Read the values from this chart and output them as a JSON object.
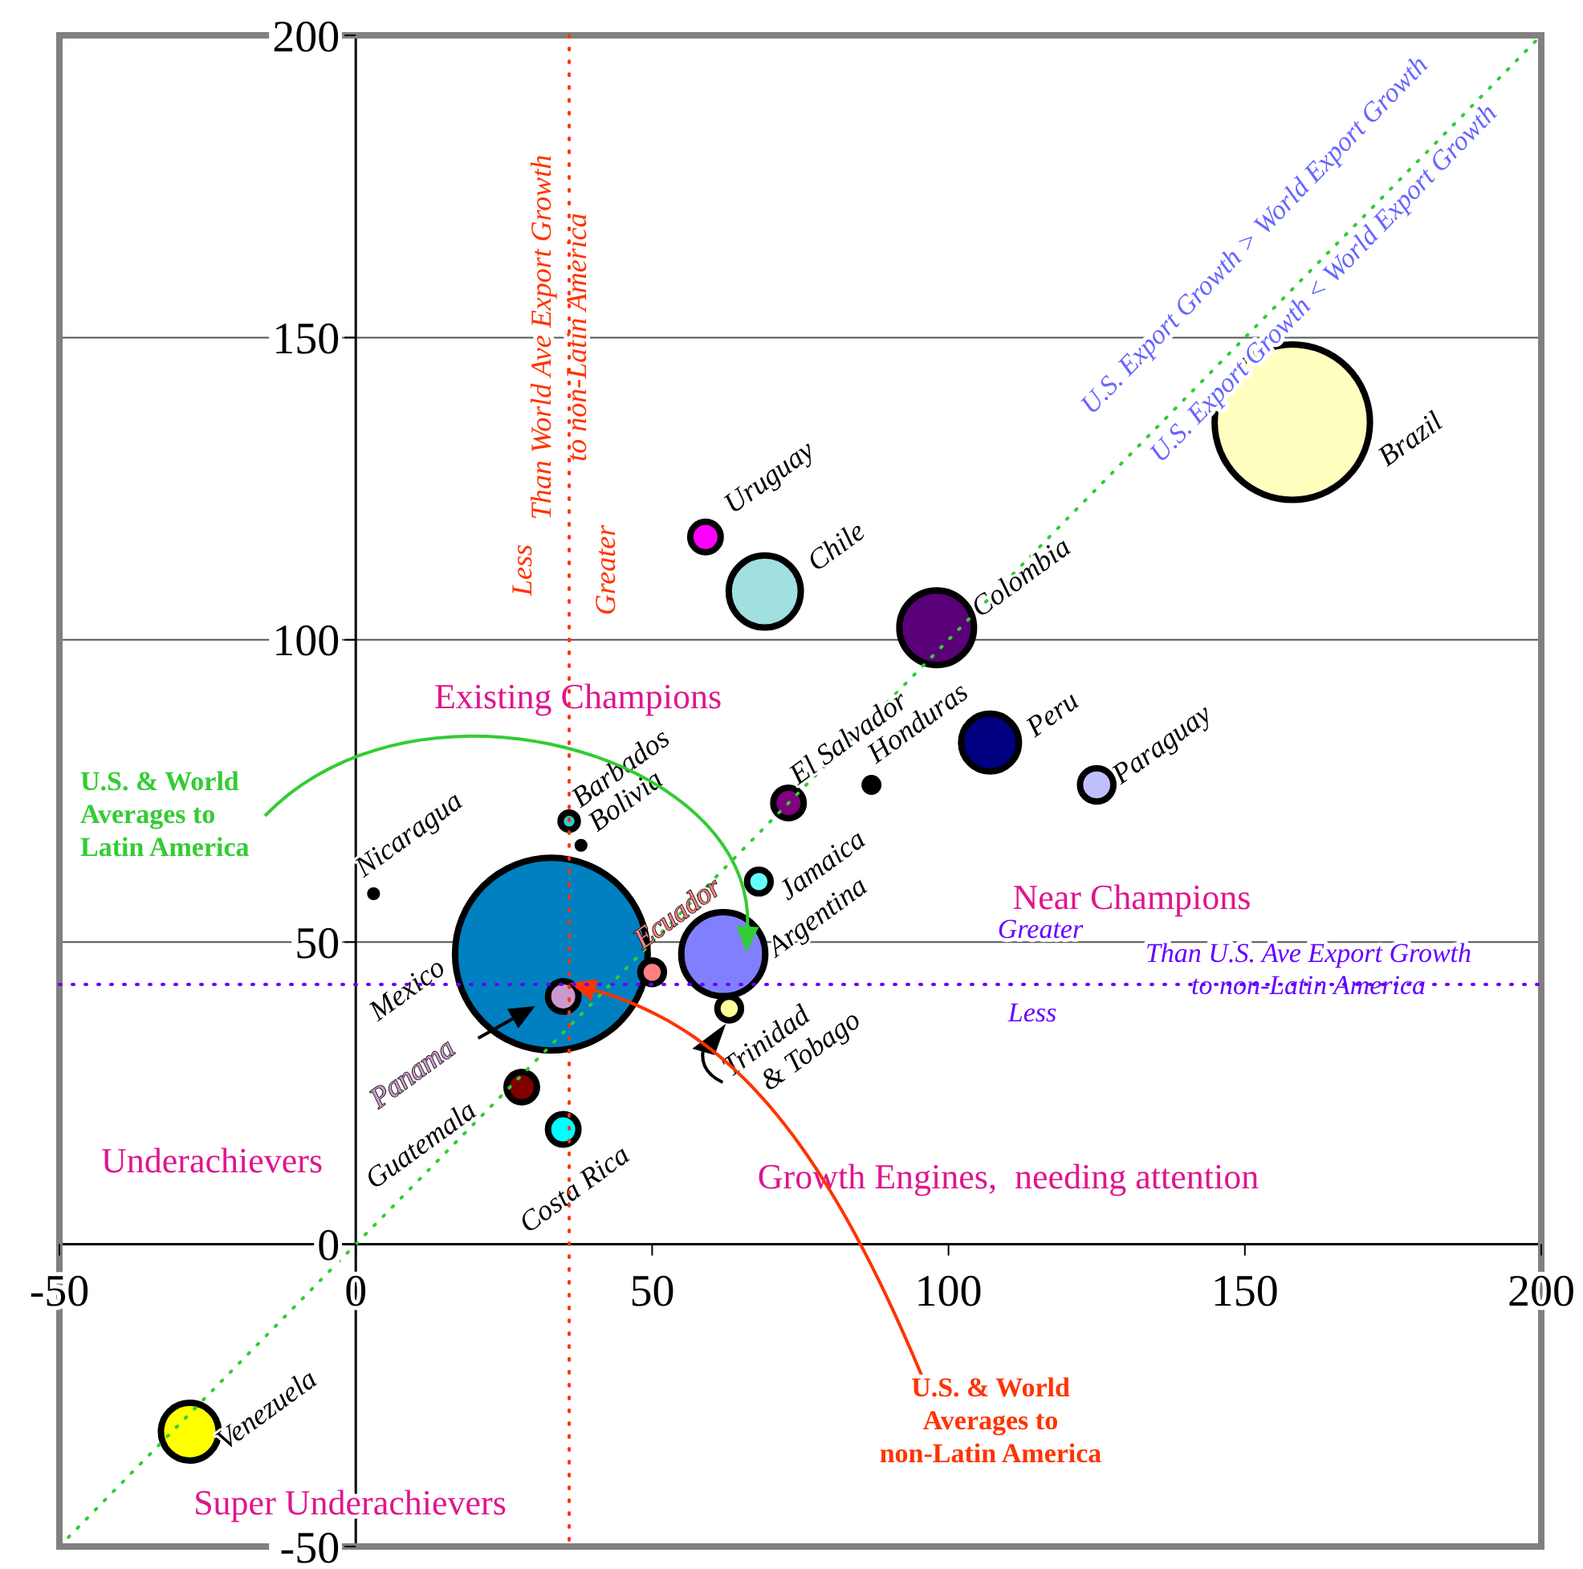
{
  "chart_data": {
    "type": "bubble",
    "xlim": [
      -50,
      200
    ],
    "ylim": [
      -50,
      200
    ],
    "xticks": [
      -50,
      0,
      50,
      100,
      150,
      200
    ],
    "yticks": [
      -50,
      0,
      50,
      100,
      150,
      200
    ],
    "grid": "y",
    "marker": "circle",
    "series": [
      {
        "name": "Mexico",
        "color": "#0080c0",
        "x": [
          33
        ],
        "values": [
          48
        ],
        "sizes": [
          1
        ]
      },
      {
        "name": "Brazil",
        "color": "#ffffc0",
        "x": [
          158
        ],
        "values": [
          136
        ],
        "sizes": [
          0.65
        ]
      },
      {
        "name": "Argentina",
        "color": "#8080ff",
        "x": [
          62
        ],
        "values": [
          48
        ],
        "sizes": [
          0.19
        ]
      },
      {
        "name": "Colombia",
        "color": "#5a0078",
        "x": [
          98
        ],
        "values": [
          102
        ],
        "sizes": [
          0.15
        ]
      },
      {
        "name": "Chile",
        "color": "#a0e0e0",
        "x": [
          69
        ],
        "values": [
          108
        ],
        "sizes": [
          0.14
        ]
      },
      {
        "name": "Peru",
        "color": "#000080",
        "x": [
          107
        ],
        "values": [
          83
        ],
        "sizes": [
          0.09
        ]
      },
      {
        "name": "Venezuela",
        "color": "#ffff00",
        "x": [
          -28
        ],
        "values": [
          -31
        ],
        "sizes": [
          0.09
        ]
      },
      {
        "name": "Uruguay",
        "color": "#ff00ff",
        "x": [
          59
        ],
        "values": [
          117
        ],
        "sizes": [
          0.025
        ]
      },
      {
        "name": "Paraguay",
        "color": "#c0c0ff",
        "x": [
          125
        ],
        "values": [
          76
        ],
        "sizes": [
          0.03
        ]
      },
      {
        "name": "El Salvador",
        "color": "#800080",
        "x": [
          73
        ],
        "values": [
          73
        ],
        "sizes": [
          0.025
        ]
      },
      {
        "name": "Honduras",
        "color": "#000000",
        "x": [
          87
        ],
        "values": [
          76
        ],
        "sizes": [
          0.005
        ]
      },
      {
        "name": "Barbados",
        "color": "#33cccc",
        "x": [
          36
        ],
        "values": [
          70
        ],
        "sizes": [
          0.008
        ]
      },
      {
        "name": "Bolivia",
        "color": "#000000",
        "x": [
          38
        ],
        "values": [
          66
        ],
        "sizes": [
          0.003
        ]
      },
      {
        "name": "Nicaragua",
        "color": "#000000",
        "x": [
          3
        ],
        "values": [
          58
        ],
        "sizes": [
          0.003
        ]
      },
      {
        "name": "Jamaica",
        "color": "#66ffff",
        "x": [
          68
        ],
        "values": [
          60
        ],
        "sizes": [
          0.015
        ]
      },
      {
        "name": "Ecuador",
        "color": "#ff8080",
        "x": [
          50
        ],
        "values": [
          45
        ],
        "sizes": [
          0.015
        ]
      },
      {
        "name": "Panama",
        "color": "#cc99cc",
        "x": [
          35
        ],
        "values": [
          41
        ],
        "sizes": [
          0.025
        ]
      },
      {
        "name": "Trinidad & Tobago",
        "color": "#ffff99",
        "x": [
          63
        ],
        "values": [
          39
        ],
        "sizes": [
          0.015
        ]
      },
      {
        "name": "Guatemala",
        "color": "#800000",
        "x": [
          28
        ],
        "values": [
          26
        ],
        "sizes": [
          0.025
        ]
      },
      {
        "name": "Costa Rica",
        "color": "#00ffff",
        "x": [
          35
        ],
        "values": [
          19
        ],
        "sizes": [
          0.025
        ]
      },
      {
        "type": "line",
        "color": "#33cc33",
        "line_style": "dotted",
        "marker": "none",
        "x": [
          -50,
          200
        ],
        "values": [
          -50,
          200
        ]
      }
    ],
    "ref_lines": [
      {
        "axis": "x",
        "value": 36,
        "color": "#ff3300",
        "line_style": "dotted"
      },
      {
        "axis": "y",
        "value": 43,
        "color": "#6600ff",
        "line_style": "dotted"
      }
    ],
    "annotations": [
      "U.S. Export Growth > World Export Growth",
      "U.S. Export Growth < World Export Growth",
      "Existing Champions",
      "Near Champions",
      "Underachievers",
      "Growth Engines,  needing attention",
      "Super Underachievers",
      "Less",
      "Than World Ave Export Growth to non-Latin America",
      "Greater",
      "Greater",
      "Than U.S. Ave Export Growth to non-Latin America",
      "Less",
      "U.S. & World Averages to Latin America",
      "U.S. & World Averages to non-Latin America"
    ]
  }
}
